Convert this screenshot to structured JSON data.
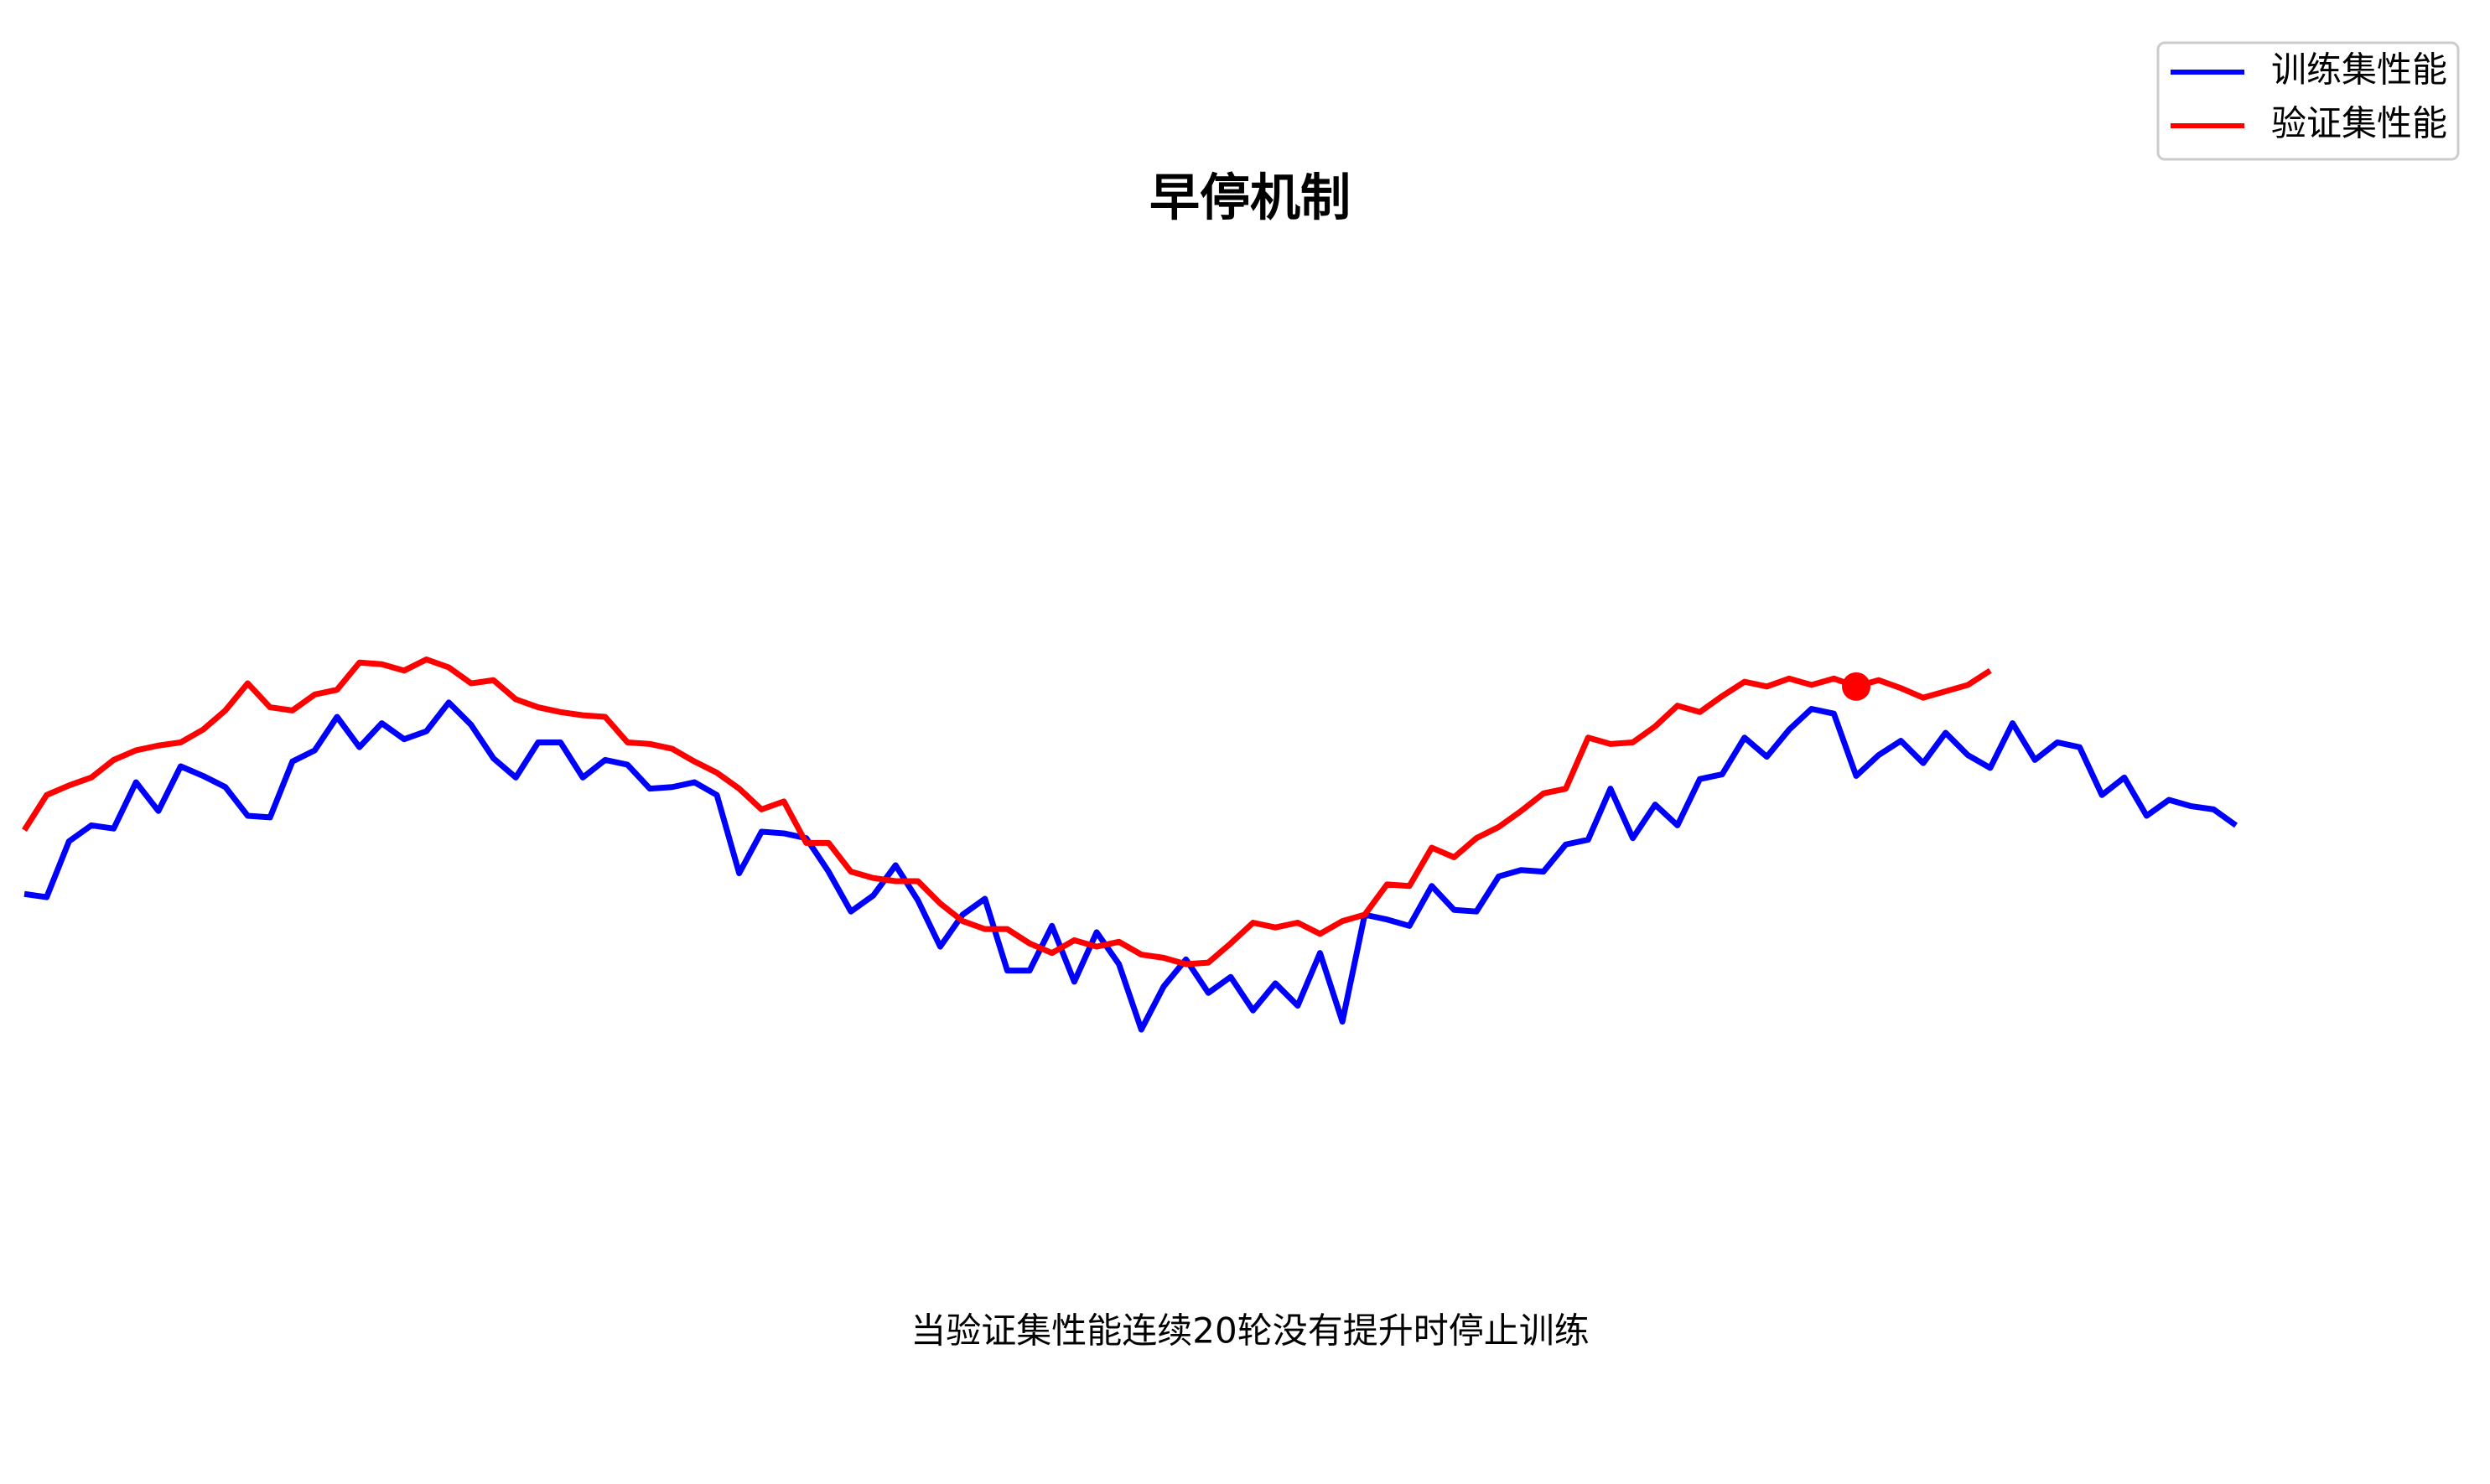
{
  "chart_data": {
    "type": "line",
    "title": "早停机制",
    "annotation": "当验证集性能连续20轮没有提升时停止训练",
    "xlim": [
      0,
      99
    ],
    "ylim": [
      0,
      64
    ],
    "legend": "upper right",
    "series": [
      {
        "name": "训练集性能",
        "color": "#0000ff",
        "values": [
          24.0,
          23.8,
          27.3,
          28.3,
          28.1,
          31.0,
          29.2,
          32.0,
          31.4,
          30.7,
          28.9,
          28.8,
          32.3,
          33.0,
          35.1,
          33.2,
          34.7,
          33.7,
          34.2,
          36.0,
          34.6,
          32.5,
          31.3,
          33.5,
          33.5,
          31.3,
          32.4,
          32.1,
          30.6,
          30.7,
          31.0,
          30.2,
          25.3,
          27.9,
          27.8,
          27.5,
          25.4,
          22.9,
          23.9,
          25.8,
          23.6,
          20.7,
          22.7,
          23.7,
          19.2,
          19.2,
          22.0,
          18.5,
          21.6,
          19.6,
          15.5,
          18.2,
          19.9,
          17.8,
          18.8,
          16.7,
          18.4,
          17.0,
          20.3,
          16.0,
          22.7,
          22.4,
          22.0,
          24.5,
          23.0,
          22.9,
          25.1,
          25.5,
          25.4,
          27.1,
          27.4,
          30.6,
          27.5,
          29.6,
          28.3,
          31.2,
          31.5,
          33.8,
          32.6,
          34.3,
          35.6,
          35.3,
          31.4,
          32.7,
          33.6,
          32.2,
          34.1,
          32.7,
          31.9,
          34.7,
          32.4,
          33.5,
          33.2,
          30.2,
          31.3,
          28.9,
          29.9,
          29.5,
          29.3,
          28.3
        ]
      },
      {
        "name": "验证集性能",
        "color": "#ff0000",
        "values": [
          28.0,
          30.2,
          30.8,
          31.3,
          32.4,
          33.0,
          33.3,
          33.5,
          34.3,
          35.5,
          37.2,
          35.7,
          35.5,
          36.5,
          36.8,
          38.5,
          38.4,
          38.0,
          38.7,
          38.2,
          37.2,
          37.4,
          36.2,
          35.7,
          35.4,
          35.2,
          35.1,
          33.5,
          33.4,
          33.1,
          32.3,
          31.6,
          30.6,
          29.3,
          29.8,
          27.2,
          27.2,
          25.4,
          25.0,
          24.8,
          24.8,
          23.4,
          22.3,
          21.8,
          21.8,
          20.9,
          20.3,
          21.1,
          20.7,
          21.0,
          20.2,
          20.0,
          19.6,
          19.7,
          20.9,
          22.2,
          21.9,
          22.2,
          21.5,
          22.3,
          22.7,
          24.6,
          24.5,
          26.9,
          26.3,
          27.5,
          28.2,
          29.2,
          30.3,
          30.6,
          33.8,
          33.4,
          33.5,
          34.5,
          35.8,
          35.4,
          36.4,
          37.3,
          37.0,
          37.5,
          37.1,
          37.5,
          37.0,
          37.4,
          36.9,
          36.3,
          36.7,
          37.1,
          38.0
        ]
      }
    ],
    "stop_point": {
      "x": 82,
      "value": 37.0,
      "color": "#ff0000"
    }
  }
}
